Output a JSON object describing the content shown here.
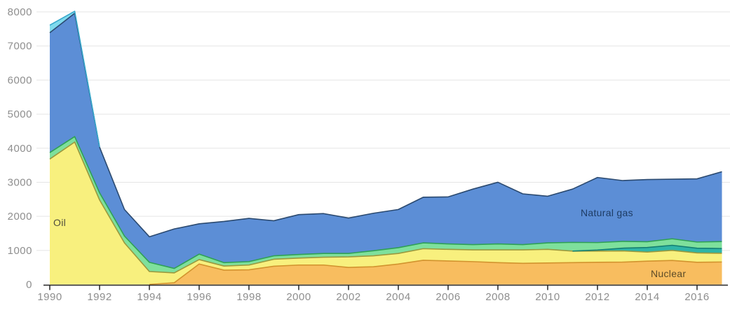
{
  "chart_data": {
    "type": "area",
    "stacked": true,
    "title": "",
    "xlabel": "",
    "ylabel": "",
    "ylim": [
      0,
      8000
    ],
    "grid": "horizontal",
    "legend_position": "labels-on-areas",
    "x": [
      1990,
      1991,
      1992,
      1993,
      1994,
      1995,
      1996,
      1997,
      1998,
      1999,
      2000,
      2001,
      2002,
      2003,
      2004,
      2005,
      2006,
      2007,
      2008,
      2009,
      2010,
      2011,
      2012,
      2013,
      2014,
      2015,
      2016,
      2017
    ],
    "x_tick_labels": [
      "1990",
      "1992",
      "1994",
      "1996",
      "1998",
      "2000",
      "2002",
      "2004",
      "2006",
      "2008",
      "2010",
      "2012",
      "2014",
      "2016"
    ],
    "y_tick_labels": [
      "0",
      "1000",
      "2000",
      "3000",
      "4000",
      "5000",
      "6000",
      "7000",
      "8000"
    ],
    "y_ticks": [
      0,
      1000,
      2000,
      3000,
      4000,
      5000,
      6000,
      7000,
      8000
    ],
    "series": [
      {
        "name": "Nuclear",
        "color": "#F8BD5F",
        "edge_color": "#D2932E",
        "values": [
          0,
          0,
          0,
          0,
          0,
          50,
          600,
          420,
          430,
          535,
          570,
          570,
          500,
          520,
          600,
          710,
          690,
          670,
          640,
          620,
          630,
          640,
          650,
          655,
          685,
          705,
          650,
          660
        ]
      },
      {
        "name": "Oil",
        "color": "#F8F07E",
        "edge_color": "#9A983E",
        "values": [
          3680,
          4180,
          2480,
          1220,
          380,
          290,
          130,
          120,
          140,
          205,
          205,
          230,
          310,
          320,
          310,
          340,
          340,
          345,
          375,
          395,
          400,
          340,
          330,
          330,
          265,
          295,
          275,
          255
        ]
      },
      {
        "name": "teal-band-unlabeled",
        "color": "#2FB5A6",
        "edge_color": "#157F72",
        "values": [
          0,
          0,
          0,
          0,
          0,
          0,
          0,
          0,
          0,
          0,
          0,
          0,
          0,
          0,
          0,
          0,
          0,
          0,
          0,
          0,
          0,
          0,
          30,
          80,
          135,
          150,
          140,
          140
        ]
      },
      {
        "name": "green-band-unlabeled",
        "color": "#7EE09C",
        "edge_color": "#2FA055",
        "values": [
          190,
          160,
          210,
          200,
          270,
          130,
          160,
          100,
          100,
          100,
          105,
          110,
          100,
          150,
          170,
          170,
          160,
          155,
          175,
          155,
          190,
          255,
          220,
          200,
          170,
          190,
          180,
          205
        ]
      },
      {
        "name": "Natural gas",
        "color": "#5C8ED6",
        "edge_color": "#2B4A70",
        "values": [
          3520,
          3620,
          1340,
          780,
          750,
          1160,
          890,
          1210,
          1270,
          1030,
          1170,
          1170,
          1040,
          1100,
          1120,
          1340,
          1380,
          1630,
          1810,
          1490,
          1370,
          1565,
          1910,
          1785,
          1825,
          1750,
          1855,
          2050
        ]
      },
      {
        "name": "cyan-band-unlabeled",
        "color": "#7FDAEE",
        "edge_color": "#36A8CC",
        "values": [
          220,
          60,
          0,
          0,
          0,
          0,
          0,
          0,
          0,
          0,
          0,
          0,
          0,
          0,
          0,
          0,
          0,
          0,
          0,
          0,
          0,
          0,
          0,
          0,
          0,
          0,
          0,
          0
        ]
      }
    ],
    "area_labels": [
      {
        "text": "Oil",
        "x": 76,
        "y": 310,
        "color": "#4F4D3D"
      },
      {
        "text": "Natural gas",
        "x": 828,
        "y": 296,
        "color": "#1E3C64"
      },
      {
        "text": "Nuclear",
        "x": 928,
        "y": 383,
        "color": "#5C4B28"
      }
    ],
    "axis_colors": {
      "tick_text": "#8E8E8E",
      "gridline": "#E5E5E5",
      "axis_line": "#262626"
    }
  }
}
